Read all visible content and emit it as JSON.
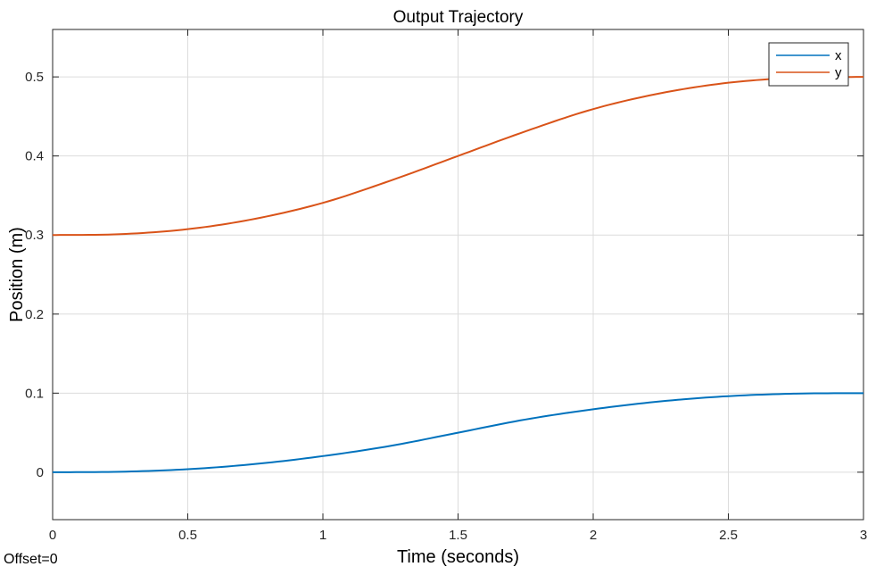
{
  "chart_data": {
    "type": "line",
    "title": "Output Trajectory",
    "xlabel": "Time (seconds)",
    "ylabel": "Position (m)",
    "xlim": [
      0,
      3
    ],
    "ylim": [
      -0.06,
      0.56
    ],
    "xticks": [
      0,
      0.5,
      1,
      1.5,
      2,
      2.5,
      3
    ],
    "xtick_labels": [
      "0",
      "0.5",
      "1",
      "1.5",
      "2",
      "2.5",
      "3"
    ],
    "yticks": [
      0,
      0.1,
      0.2,
      0.3,
      0.4,
      0.5
    ],
    "ytick_labels": [
      "0",
      "0.1",
      "0.2",
      "0.3",
      "0.4",
      "0.5"
    ],
    "grid": true,
    "legend": "top-right",
    "series": [
      {
        "name": "x",
        "color": "#0072BD",
        "x": [
          0,
          0.25,
          0.5,
          0.75,
          1.0,
          1.25,
          1.5,
          1.75,
          2.0,
          2.25,
          2.5,
          2.75,
          3.0
        ],
        "y": [
          0,
          0.0006,
          0.0038,
          0.0104,
          0.0204,
          0.0333,
          0.05,
          0.0667,
          0.0796,
          0.0896,
          0.0962,
          0.0994,
          0.1
        ]
      },
      {
        "name": "y",
        "color": "#D95319",
        "x": [
          0,
          0.25,
          0.5,
          0.75,
          1.0,
          1.25,
          1.5,
          1.75,
          2.0,
          2.25,
          2.5,
          2.75,
          3.0
        ],
        "y": [
          0.3,
          0.3011,
          0.3074,
          0.3206,
          0.3407,
          0.3688,
          0.4,
          0.4312,
          0.4593,
          0.4794,
          0.4926,
          0.4989,
          0.5
        ]
      }
    ]
  },
  "footer": {
    "offset_text": "Offset=0"
  }
}
